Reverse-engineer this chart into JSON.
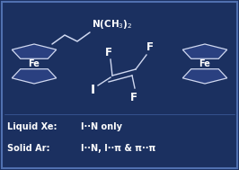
{
  "bg_color": "#1b3060",
  "text_color": "#ffffff",
  "lxe_label": "Liquid Xe:",
  "lxe_val": "I··N only",
  "sar_label": "Solid Ar:",
  "sar_val": "I··N, I··π & π··π",
  "ring_facecolor": "#2a4080",
  "ring_edgecolor": "#d0d8f0",
  "border_color": "#5070b0"
}
